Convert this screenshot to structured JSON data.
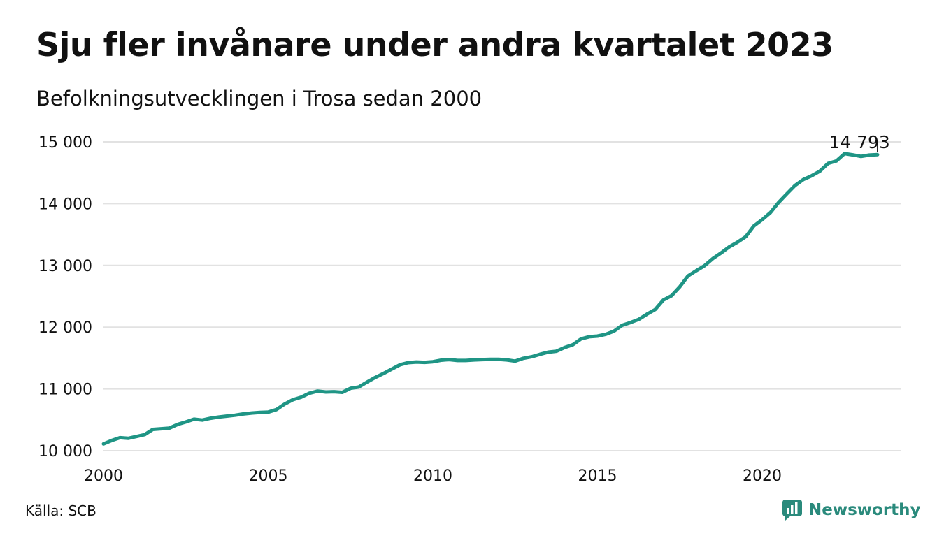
{
  "header": {
    "title": "Sju fler invånare under andra kvartalet 2023",
    "subtitle": "Befolkningsutvecklingen i Trosa sedan 2000"
  },
  "footer": {
    "source": "Källa: SCB",
    "brand": "Newsworthy",
    "brand_icon": "newsworthy-logo-icon"
  },
  "colors": {
    "line": "#1f9585",
    "grid": "#e2e2e2",
    "brand": "#2a8a7c",
    "text": "#111111"
  },
  "chart_data": {
    "type": "line",
    "title": "Sju fler invånare under andra kvartalet 2023",
    "subtitle": "Befolkningsutvecklingen i Trosa sedan 2000",
    "xlabel": "",
    "ylabel": "",
    "xlim": [
      2000,
      2024
    ],
    "ylim": [
      10000,
      15000
    ],
    "grid": true,
    "legend": "none",
    "x_ticks": [
      {
        "value": 2000,
        "label": "2000"
      },
      {
        "value": 2005,
        "label": "2005"
      },
      {
        "value": 2010,
        "label": "2010"
      },
      {
        "value": 2015,
        "label": "2015"
      },
      {
        "value": 2020,
        "label": "2020"
      }
    ],
    "y_ticks": [
      {
        "value": 10000,
        "label": "10 000"
      },
      {
        "value": 11000,
        "label": "11 000"
      },
      {
        "value": 12000,
        "label": "12 000"
      },
      {
        "value": 13000,
        "label": "13 000"
      },
      {
        "value": 14000,
        "label": "14 000"
      },
      {
        "value": 15000,
        "label": "15 000"
      }
    ],
    "annotation": {
      "x": 2023.5,
      "y": 14793,
      "label": "14 793"
    },
    "series": [
      {
        "x": [
          2000.0,
          2000.25,
          2000.5,
          2000.75,
          2001.0,
          2001.25,
          2001.5,
          2001.75,
          2002.0,
          2002.25,
          2002.5,
          2002.75,
          2003.0,
          2003.25,
          2003.5,
          2003.75,
          2004.0,
          2004.25,
          2004.5,
          2004.75,
          2005.0,
          2005.25,
          2005.5,
          2005.75,
          2006.0,
          2006.25,
          2006.5,
          2006.75,
          2007.0,
          2007.25,
          2007.5,
          2007.75,
          2008.0,
          2008.25,
          2008.5,
          2008.75,
          2009.0,
          2009.25,
          2009.5,
          2009.75,
          2010.0,
          2010.25,
          2010.5,
          2010.75,
          2011.0,
          2011.25,
          2011.5,
          2011.75,
          2012.0,
          2012.25,
          2012.5,
          2012.75,
          2013.0,
          2013.25,
          2013.5,
          2013.75,
          2014.0,
          2014.25,
          2014.5,
          2014.75,
          2015.0,
          2015.25,
          2015.5,
          2015.75,
          2016.0,
          2016.25,
          2016.5,
          2016.75,
          2017.0,
          2017.25,
          2017.5,
          2017.75,
          2018.0,
          2018.25,
          2018.5,
          2018.75,
          2019.0,
          2019.25,
          2019.5,
          2019.75,
          2020.0,
          2020.25,
          2020.5,
          2020.75,
          2021.0,
          2021.25,
          2021.5,
          2021.75,
          2022.0,
          2022.25,
          2022.5,
          2022.75,
          2023.0,
          2023.25,
          2023.5
        ],
        "values": [
          10110,
          10165,
          10210,
          10200,
          10230,
          10260,
          10345,
          10355,
          10365,
          10425,
          10465,
          10510,
          10495,
          10525,
          10545,
          10560,
          10575,
          10595,
          10610,
          10620,
          10625,
          10665,
          10755,
          10825,
          10865,
          10930,
          10965,
          10950,
          10955,
          10945,
          11010,
          11030,
          11110,
          11185,
          11250,
          11320,
          11390,
          11425,
          11435,
          11430,
          11440,
          11465,
          11475,
          11460,
          11460,
          11470,
          11475,
          11480,
          11480,
          11470,
          11450,
          11495,
          11520,
          11560,
          11595,
          11610,
          11670,
          11715,
          11810,
          11845,
          11855,
          11885,
          11935,
          12030,
          12075,
          12125,
          12210,
          12285,
          12440,
          12510,
          12655,
          12830,
          12915,
          12995,
          13110,
          13200,
          13300,
          13375,
          13465,
          13640,
          13740,
          13855,
          14020,
          14160,
          14295,
          14390,
          14450,
          14525,
          14650,
          14690,
          14810,
          14790,
          14765,
          14786,
          14793
        ]
      }
    ]
  }
}
